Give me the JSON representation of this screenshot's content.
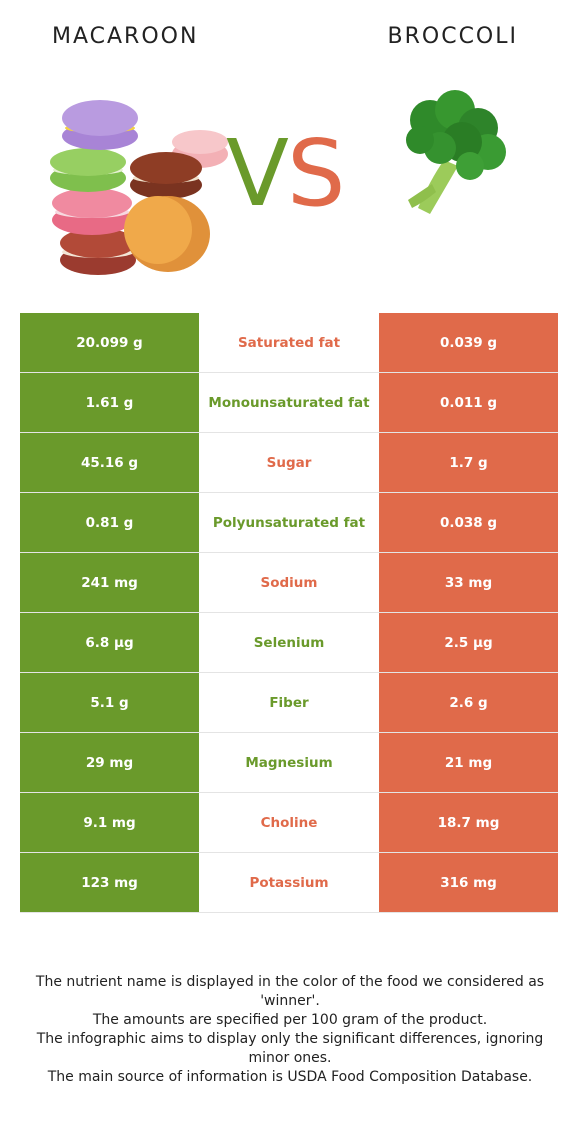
{
  "header": {
    "left_food": "MACAROON",
    "right_food": "BROCCOLI",
    "vs_v": "V",
    "vs_s": "S"
  },
  "colors": {
    "left": "#6a9a2b",
    "right": "#e06a4a"
  },
  "rows": [
    {
      "left": "20.099 g",
      "nutrient": "Saturated fat",
      "right": "0.039 g",
      "winner": "right"
    },
    {
      "left": "1.61 g",
      "nutrient": "Monounsaturated fat",
      "right": "0.011 g",
      "winner": "left"
    },
    {
      "left": "45.16 g",
      "nutrient": "Sugar",
      "right": "1.7 g",
      "winner": "right"
    },
    {
      "left": "0.81 g",
      "nutrient": "Polyunsaturated fat",
      "right": "0.038 g",
      "winner": "left"
    },
    {
      "left": "241 mg",
      "nutrient": "Sodium",
      "right": "33 mg",
      "winner": "right"
    },
    {
      "left": "6.8 µg",
      "nutrient": "Selenium",
      "right": "2.5 µg",
      "winner": "left"
    },
    {
      "left": "5.1 g",
      "nutrient": "Fiber",
      "right": "2.6 g",
      "winner": "left"
    },
    {
      "left": "29 mg",
      "nutrient": "Magnesium",
      "right": "21 mg",
      "winner": "left"
    },
    {
      "left": "9.1 mg",
      "nutrient": "Choline",
      "right": "18.7 mg",
      "winner": "right"
    },
    {
      "left": "123 mg",
      "nutrient": "Potassium",
      "right": "316 mg",
      "winner": "right"
    }
  ],
  "footnote": [
    "The nutrient name is displayed in the color of the food we considered as 'winner'.",
    "The amounts are specified per 100 gram of the product.",
    "The infographic aims to display only the significant differences, ignoring minor ones.",
    "The main source of information is USDA Food Composition Database."
  ]
}
